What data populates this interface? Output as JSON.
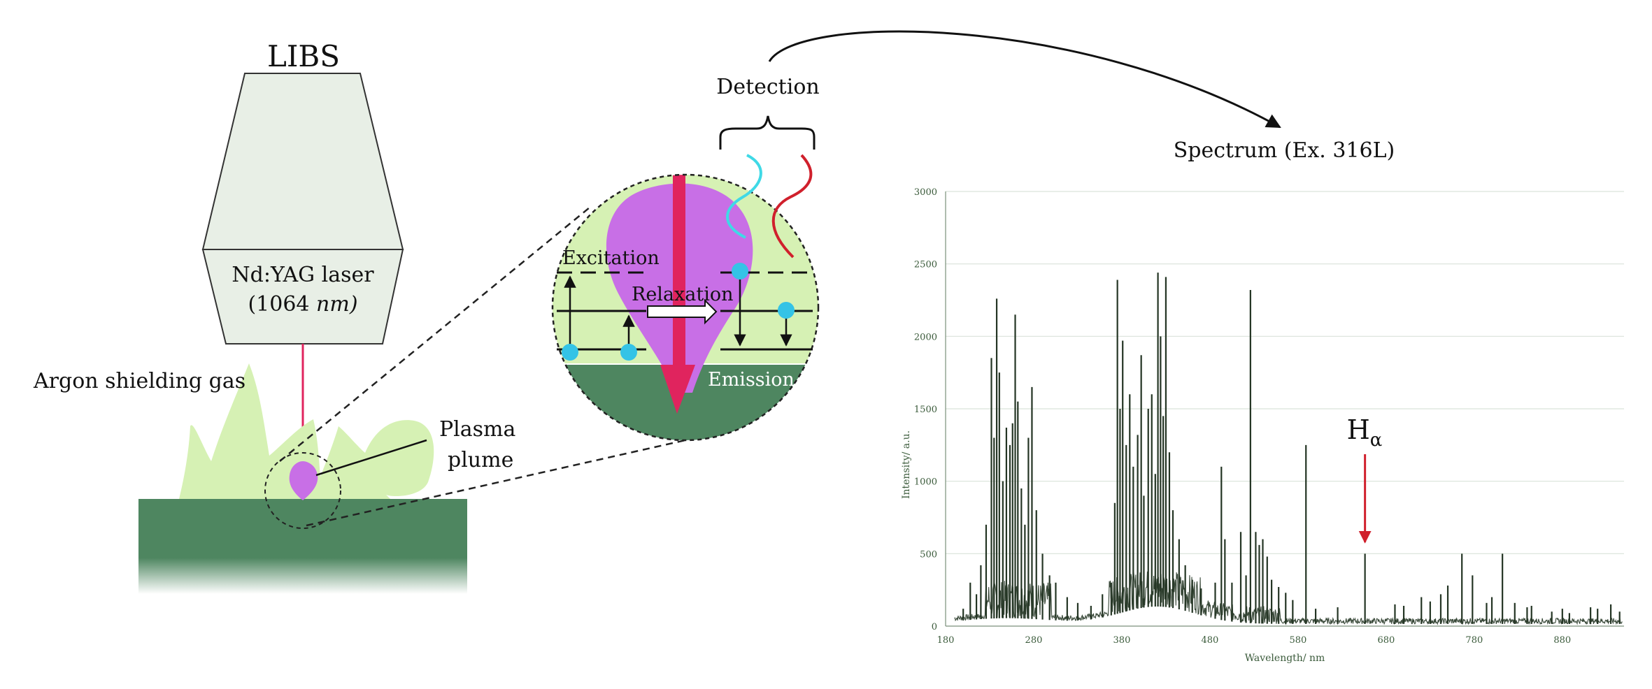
{
  "labels": {
    "libs_title": "LIBS",
    "laser_name": "Nd:YAG laser",
    "laser_wavelength_open": "(1064 ",
    "laser_wavelength_unit": "nm)",
    "argon_gas": "Argon shielding gas",
    "plasma_line1": "Plasma",
    "plasma_line2": "plume",
    "excitation": "Excitation",
    "relaxation": "Relaxation",
    "emission": "Emission",
    "detection": "Detection",
    "spectrum_title": "Spectrum (Ex. 316L)",
    "h_alpha_main": "H",
    "h_alpha_sub": "α"
  },
  "colors": {
    "substrate": "#4e8660",
    "gas": "#d6f1b4",
    "plasma": "#c86fe6",
    "laser_beam": "#e0245e",
    "electron": "#34c3e6",
    "wave_cyan": "#3fd9e6",
    "wave_red": "#d0202c",
    "trace": "#243524",
    "arrow_red": "#d0202c"
  },
  "chart_data": {
    "type": "line",
    "xlabel": "Wavelength/ nm",
    "ylabel": "Intensity/ a.u.",
    "xlim": [
      180,
      950
    ],
    "ylim": [
      0,
      3000
    ],
    "x_ticks": [
      180,
      280,
      380,
      480,
      580,
      680,
      780,
      880
    ],
    "y_ticks": [
      0,
      500,
      1000,
      1500,
      2000,
      2500,
      3000
    ],
    "grid": "horizontal",
    "annotation": {
      "label": "Hα",
      "x": 656
    },
    "peaks": [
      {
        "x": 200,
        "y": 120
      },
      {
        "x": 208,
        "y": 300
      },
      {
        "x": 215,
        "y": 220
      },
      {
        "x": 220,
        "y": 420
      },
      {
        "x": 226,
        "y": 700
      },
      {
        "x": 232,
        "y": 1850
      },
      {
        "x": 235,
        "y": 1300
      },
      {
        "x": 238,
        "y": 2260
      },
      {
        "x": 241,
        "y": 1750
      },
      {
        "x": 245,
        "y": 1000
      },
      {
        "x": 249,
        "y": 1370
      },
      {
        "x": 253,
        "y": 1250
      },
      {
        "x": 256,
        "y": 1400
      },
      {
        "x": 259,
        "y": 2150
      },
      {
        "x": 262,
        "y": 1550
      },
      {
        "x": 266,
        "y": 950
      },
      {
        "x": 270,
        "y": 700
      },
      {
        "x": 274,
        "y": 1300
      },
      {
        "x": 278,
        "y": 1650
      },
      {
        "x": 283,
        "y": 800
      },
      {
        "x": 290,
        "y": 500
      },
      {
        "x": 298,
        "y": 350
      },
      {
        "x": 305,
        "y": 300
      },
      {
        "x": 318,
        "y": 200
      },
      {
        "x": 330,
        "y": 160
      },
      {
        "x": 345,
        "y": 140
      },
      {
        "x": 358,
        "y": 220
      },
      {
        "x": 368,
        "y": 300
      },
      {
        "x": 372,
        "y": 850
      },
      {
        "x": 375,
        "y": 2390
      },
      {
        "x": 378,
        "y": 1500
      },
      {
        "x": 381,
        "y": 1970
      },
      {
        "x": 385,
        "y": 1250
      },
      {
        "x": 389,
        "y": 1600
      },
      {
        "x": 393,
        "y": 1100
      },
      {
        "x": 398,
        "y": 1320
      },
      {
        "x": 402,
        "y": 1870
      },
      {
        "x": 405,
        "y": 900
      },
      {
        "x": 410,
        "y": 1500
      },
      {
        "x": 414,
        "y": 1600
      },
      {
        "x": 418,
        "y": 1050
      },
      {
        "x": 421,
        "y": 2440
      },
      {
        "x": 424,
        "y": 2000
      },
      {
        "x": 427,
        "y": 1450
      },
      {
        "x": 430,
        "y": 2410
      },
      {
        "x": 434,
        "y": 1200
      },
      {
        "x": 438,
        "y": 800
      },
      {
        "x": 445,
        "y": 600
      },
      {
        "x": 452,
        "y": 420
      },
      {
        "x": 460,
        "y": 320
      },
      {
        "x": 470,
        "y": 260
      },
      {
        "x": 486,
        "y": 300
      },
      {
        "x": 493,
        "y": 1100
      },
      {
        "x": 497,
        "y": 600
      },
      {
        "x": 505,
        "y": 300
      },
      {
        "x": 515,
        "y": 650
      },
      {
        "x": 521,
        "y": 350
      },
      {
        "x": 526,
        "y": 2320
      },
      {
        "x": 532,
        "y": 650
      },
      {
        "x": 536,
        "y": 560
      },
      {
        "x": 540,
        "y": 600
      },
      {
        "x": 545,
        "y": 480
      },
      {
        "x": 550,
        "y": 320
      },
      {
        "x": 558,
        "y": 270
      },
      {
        "x": 566,
        "y": 230
      },
      {
        "x": 574,
        "y": 180
      },
      {
        "x": 589,
        "y": 1250
      },
      {
        "x": 600,
        "y": 120
      },
      {
        "x": 625,
        "y": 130
      },
      {
        "x": 656,
        "y": 500
      },
      {
        "x": 690,
        "y": 150
      },
      {
        "x": 700,
        "y": 140
      },
      {
        "x": 720,
        "y": 200
      },
      {
        "x": 730,
        "y": 170
      },
      {
        "x": 742,
        "y": 220
      },
      {
        "x": 750,
        "y": 280
      },
      {
        "x": 766,
        "y": 500
      },
      {
        "x": 778,
        "y": 350
      },
      {
        "x": 794,
        "y": 160
      },
      {
        "x": 800,
        "y": 200
      },
      {
        "x": 812,
        "y": 500
      },
      {
        "x": 826,
        "y": 160
      },
      {
        "x": 840,
        "y": 130
      },
      {
        "x": 845,
        "y": 140
      },
      {
        "x": 868,
        "y": 100
      },
      {
        "x": 880,
        "y": 120
      },
      {
        "x": 888,
        "y": 90
      },
      {
        "x": 912,
        "y": 130
      },
      {
        "x": 920,
        "y": 120
      },
      {
        "x": 935,
        "y": 150
      },
      {
        "x": 945,
        "y": 100
      }
    ]
  }
}
